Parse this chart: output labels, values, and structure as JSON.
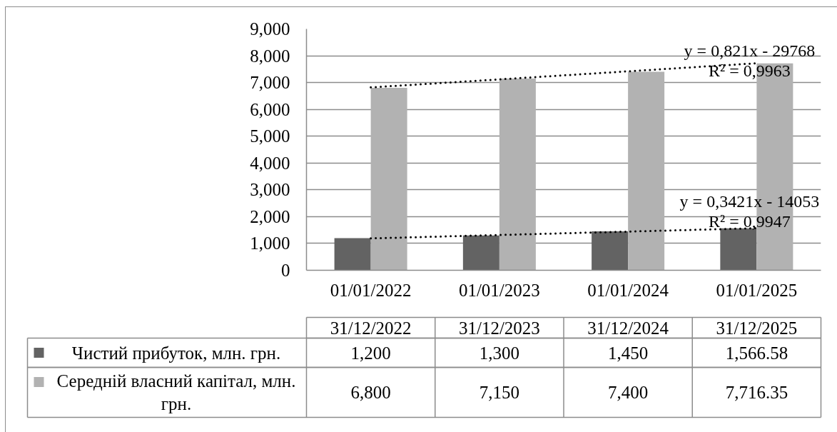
{
  "chart_data": {
    "type": "bar",
    "categories": [
      "01/01/2022",
      "01/01/2023",
      "01/01/2024",
      "01/01/2025"
    ],
    "series": [
      {
        "name": "Чистий прибуток, млн. грн.",
        "color": "#636363",
        "values": [
          1200,
          1300,
          1450,
          1566.58
        ],
        "value_labels": [
          "1,200",
          "1,300",
          "1,450",
          "1,566.58"
        ]
      },
      {
        "name": "Середній власний капітал, млн. грн.",
        "color": "#b2b2b2",
        "values": [
          6800,
          7150,
          7400,
          7716.35
        ],
        "value_labels": [
          "6,800",
          "7,150",
          "7,400",
          "7,716.35"
        ]
      },
      {
        "type": "line",
        "color": "#000000",
        "x": [
          "01/01/2022",
          "01/01/2025"
        ],
        "values": [
          6820,
          7720
        ]
      },
      {
        "type": "line",
        "color": "#000000",
        "x": [
          "01/01/2022",
          "01/01/2025"
        ],
        "values": [
          1190,
          1570
        ]
      }
    ],
    "line_style": "dotted",
    "ylim": [
      0,
      9000
    ],
    "yticks": [
      0,
      {
        "value": 1000,
        "label": "1,000"
      },
      {
        "value": 2000,
        "label": "2,000"
      },
      {
        "value": 3000,
        "label": "3,000"
      },
      {
        "value": 4000,
        "label": "4,000"
      },
      {
        "value": 5000,
        "label": "5,000"
      },
      {
        "value": 6000,
        "label": "6,000"
      },
      {
        "value": 7000,
        "label": "7,000"
      },
      {
        "value": 8000,
        "label": "8,000"
      },
      {
        "value": 9000,
        "label": "9,000"
      }
    ],
    "grid": "y",
    "legend": "bottom",
    "annotations": [
      {
        "text": "y = 0,821x - 29768",
        "x": "01/01/2025",
        "y": 7820
      },
      {
        "text": "R² = 0,9963",
        "x": "01/01/2025",
        "y": 7820
      },
      {
        "text": "y = 0,3421x - 14053",
        "x": "01/01/2025",
        "y": 2190
      },
      {
        "text": "R² = 0,9947",
        "x": "01/01/2025",
        "y": 2190
      },
      "31/12/2022",
      "31/12/2023",
      "31/12/2024",
      "31/12/2025"
    ]
  }
}
